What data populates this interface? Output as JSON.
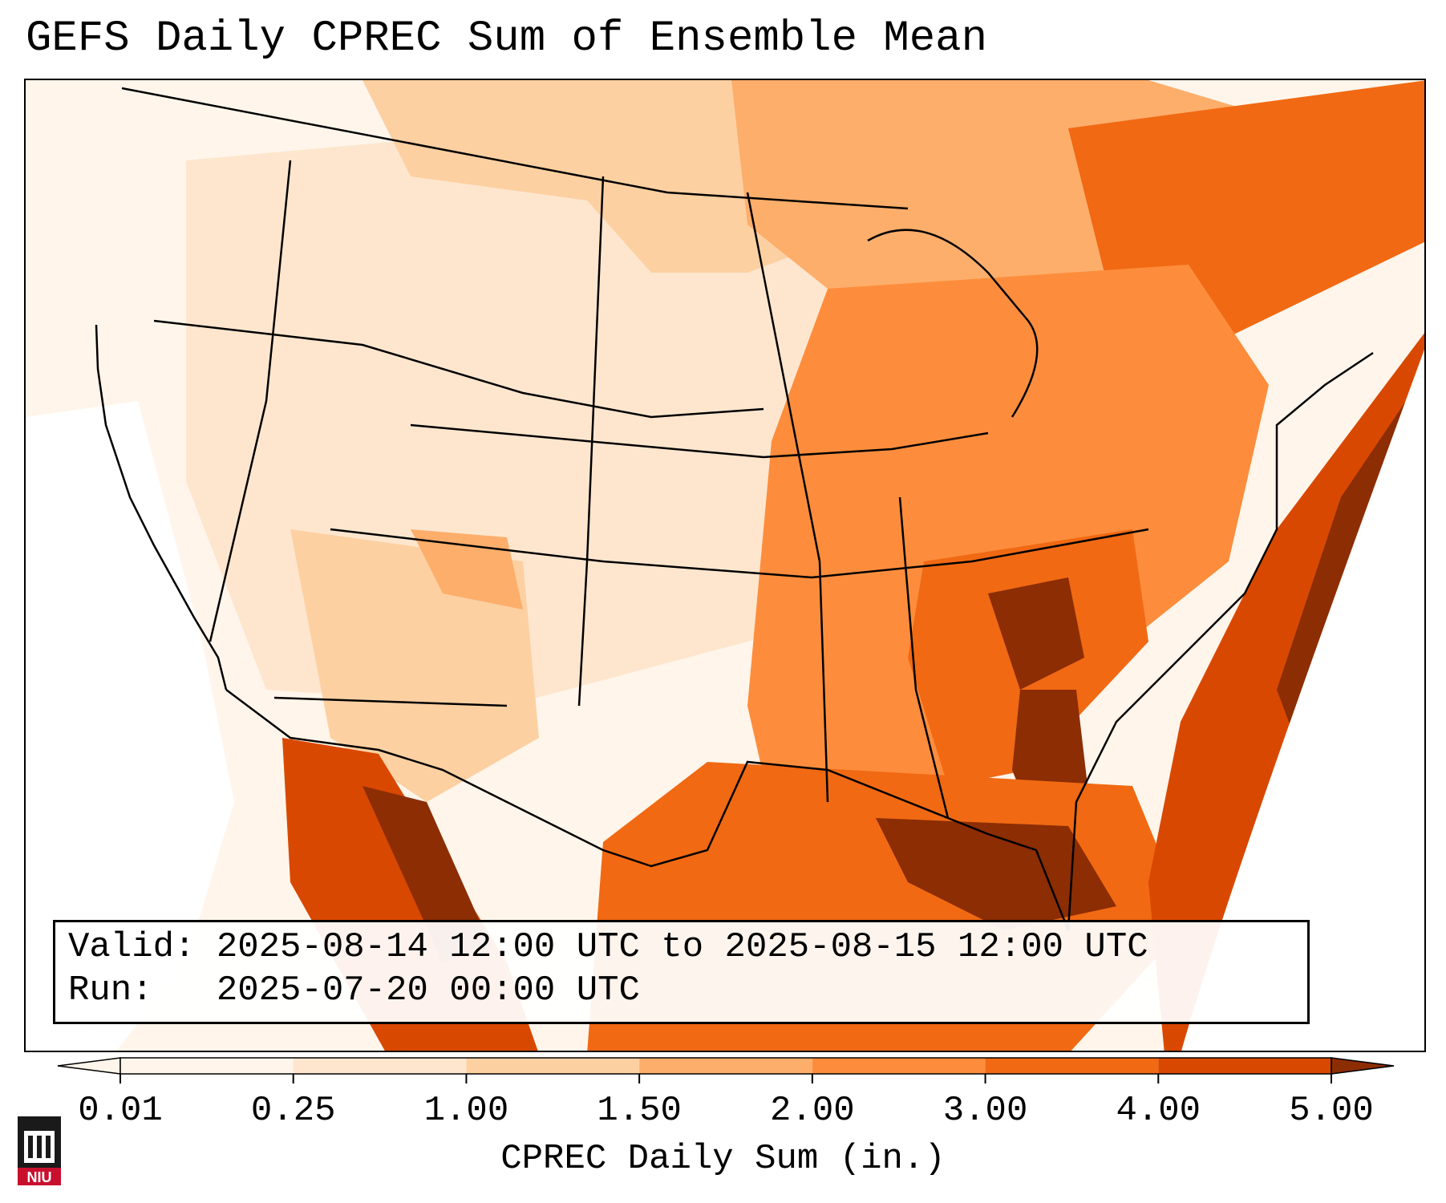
{
  "title": "GEFS Daily CPREC Sum of Ensemble Mean",
  "info": {
    "valid_label": "Valid:",
    "valid_value": "2025-08-14 12:00 UTC to 2025-08-15 12:00 UTC",
    "run_label": "Run:",
    "run_value": "2025-07-20 00:00 UTC"
  },
  "colorbar": {
    "label": "CPREC Daily Sum (in.)",
    "ticks": [
      "0.01",
      "0.25",
      "1.00",
      "1.50",
      "2.00",
      "3.00",
      "4.00",
      "5.00"
    ],
    "colors": [
      "#fff5eb",
      "#fee6ce",
      "#fdd0a2",
      "#fdae6b",
      "#fd8d3c",
      "#f16913",
      "#d94801",
      "#8c2d04"
    ],
    "extend": "both"
  },
  "logo": {
    "text": "NIU",
    "icon": "niu-building-logo-icon",
    "color": "#c8102e"
  }
}
